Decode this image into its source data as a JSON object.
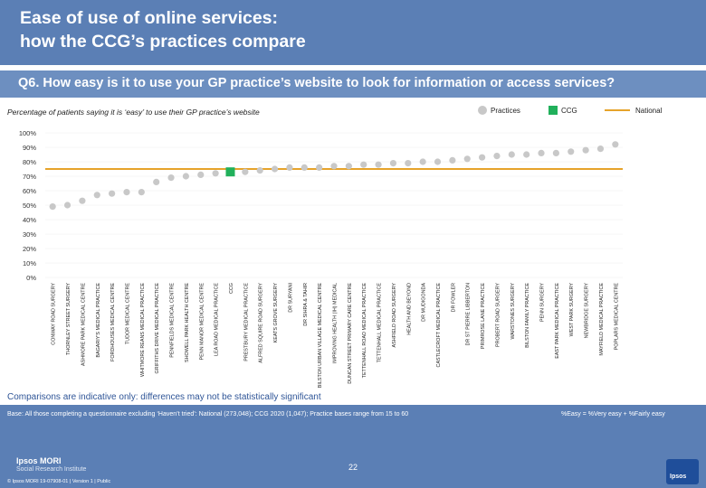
{
  "header": {
    "title_line1": "Ease of use of online services:",
    "title_line2": "how the CCG’s practices compare"
  },
  "question": "Q6. How easy is it to use your GP practice’s website to look for information or access services?",
  "subtitle": "Percentage of patients saying it is ‘easy’ to use their GP practice’s website",
  "legend": {
    "practices": "Practices",
    "ccg": "CCG",
    "national": "National"
  },
  "colors": {
    "header": "#5b7fb5",
    "practice_marker": "#c8c8c8",
    "ccg_marker": "#21b05b",
    "national_line": "#e6a32a",
    "accent_text": "#2f5597"
  },
  "comparison_note": "Comparisons are indicative only: differences may not be statistically significant",
  "base_note": "Base: All those completing a questionnaire excluding ‘Haven’t tried’: National (273,048); CCG 2020 (1,047); Practice bases range from 15 to 60",
  "easy_note": "%Easy = %Very easy + %Fairly easy",
  "footer": {
    "brand": "Ipsos MORI",
    "brand_sub": "Social Research Institute",
    "copyright": "© Ipsos MORI    19-07908-01 | Version 1 | Public",
    "page": "22",
    "logo": "Ipsos"
  },
  "chart_data": {
    "type": "scatter",
    "title": "",
    "xlabel": "",
    "ylabel": "",
    "ylim": [
      0,
      100
    ],
    "y_ticks": [
      "0%",
      "10%",
      "20%",
      "30%",
      "40%",
      "50%",
      "60%",
      "70%",
      "80%",
      "90%",
      "100%"
    ],
    "national_value": 75,
    "categories": [
      "CONWAY ROAD SURGERY",
      "THORNLEY STREET SURGERY",
      "ASHMORE PARK MEDICAL CENTRE",
      "BAGARIY'S MEDICAL PRACTICE",
      "FORDHOUSES MEDICAL CENTRE",
      "TUDOR MEDICAL CENTRE",
      "WHITMORE REANS MEDICAL PRACTICE",
      "GRIFFITHS DRIVE MEDICAL PRACTICE",
      "PENNFIELDS MEDICAL CENTRE",
      "SHOWELL PARK HEALTH CENTRE",
      "PENN MANOR MEDICAL CENTRE",
      "LEA ROAD MEDICAL PRACTICE",
      "CCG",
      "PRESTBURY MEDICAL PRACTICE",
      "ALFRED SQUIRE ROAD SURGERY",
      "KEATS GROVE SURGERY",
      "DR SURYANI",
      "DR SIHRA & TAHIR",
      "BILSTON URBAN VILLAGE MEDICAL CENTRE",
      "IMPROVING HEALTH (IH) MEDICAL",
      "DUNCAN STREET PRIMARY CARE CENTRE",
      "TETTENHALL ROAD MEDICAL PRACTICE",
      "TETTENHALL MEDICAL PRACTICE",
      "ASHFIELD ROAD SURGERY",
      "HEALTH AND BEYOND",
      "DR MUDIGONDA",
      "CASTLECROFT MEDICAL PRACTICE",
      "DR FOWLER",
      "DR ST PIERRE LIBBERTON",
      "PRIMROSE LANE PRACTICE",
      "PROBERT ROAD SURGERY",
      "WARSTONES SURGERY",
      "BILSTON FAMILY PRACTICE",
      "PENN SURGERY",
      "EAST PARK MEDICAL PRACTICE",
      "WEST PARK SURGERY",
      "NEWBRIDGE SURGERY",
      "MAYFIELD MEDICAL PRACTICE",
      "POPLARS MEDICAL CENTRE"
    ],
    "values": [
      49,
      50,
      53,
      57,
      58,
      59,
      59,
      66,
      69,
      70,
      71,
      72,
      73,
      73,
      74,
      75,
      76,
      76,
      76,
      77,
      77,
      78,
      78,
      79,
      79,
      80,
      80,
      81,
      82,
      83,
      84,
      85,
      85,
      86,
      86,
      87,
      88,
      89,
      92
    ]
  }
}
